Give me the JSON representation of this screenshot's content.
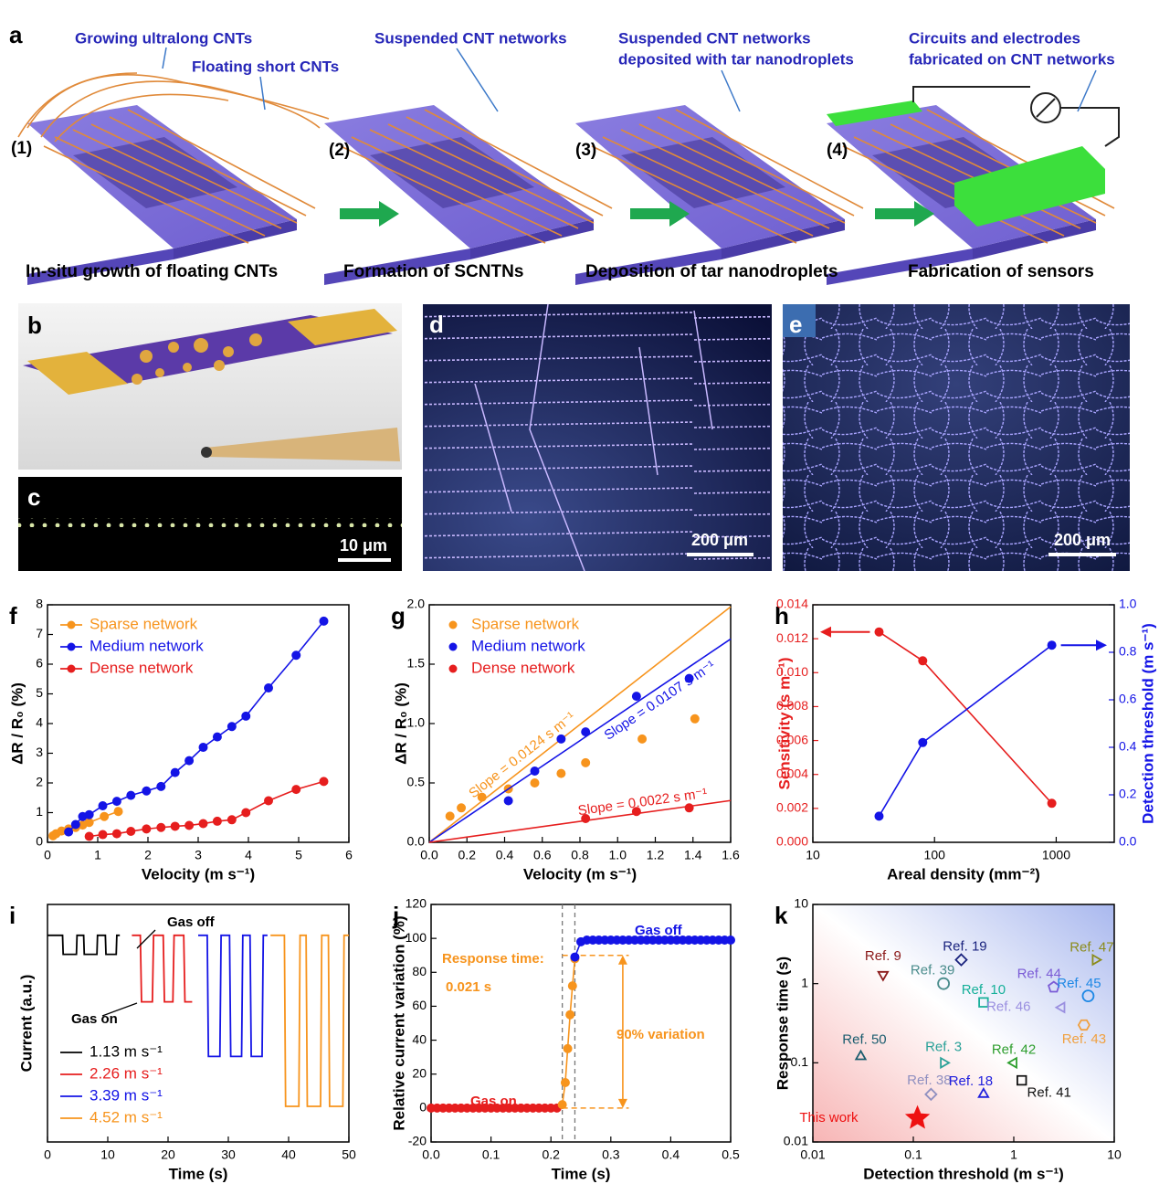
{
  "figure": {
    "a": {
      "label": "a",
      "callouts": [
        "Growing ultralong CNTs",
        "Floating short CNTs",
        "Suspended CNT networks",
        "Suspended CNT networks",
        "deposited with tar nanodroplets",
        "Circuits and electrodes",
        "fabricated on CNT networks"
      ],
      "steps": [
        "(1)",
        "(2)",
        "(3)",
        "(4)"
      ],
      "captions": [
        "In-situ growth of floating CNTs",
        "Formation of SCNTNs",
        "Deposition of tar nanodroplets",
        "Fabrication of sensors"
      ]
    },
    "b": {
      "label": "b"
    },
    "c": {
      "label": "c",
      "scale_bar": "10 μm"
    },
    "d": {
      "label": "d",
      "scale_bar": "200 μm"
    },
    "e": {
      "label": "e",
      "scale_bar": "200 μm"
    }
  },
  "chart_data": [
    {
      "type": "line",
      "panel": "f",
      "xlabel": "Velocity (m s⁻¹)",
      "ylabel": "ΔR / R₀ (%)",
      "xlim": [
        0,
        6
      ],
      "xticks": [
        0,
        1,
        2,
        3,
        4,
        5,
        6
      ],
      "ylim": [
        0,
        8
      ],
      "yticks": [
        0,
        1,
        2,
        3,
        4,
        5,
        6,
        7,
        8
      ],
      "legend": "upper left",
      "series": [
        {
          "name": "Sparse network",
          "color": "#f7941d",
          "marker": "circle",
          "x": [
            0.11,
            0.17,
            0.28,
            0.42,
            0.56,
            0.7,
            0.83,
            1.13,
            1.41
          ],
          "values": [
            0.22,
            0.29,
            0.38,
            0.45,
            0.5,
            0.58,
            0.67,
            0.87,
            1.04
          ]
        },
        {
          "name": "Medium network",
          "color": "#1414e6",
          "marker": "circle",
          "x": [
            0.42,
            0.56,
            0.7,
            0.83,
            1.1,
            1.38,
            1.66,
            1.97,
            2.26,
            2.54,
            2.82,
            3.1,
            3.38,
            3.67,
            3.95,
            4.4,
            4.95,
            5.5
          ],
          "values": [
            0.35,
            0.6,
            0.87,
            0.93,
            1.23,
            1.38,
            1.58,
            1.73,
            1.88,
            2.35,
            2.75,
            3.2,
            3.55,
            3.9,
            4.25,
            5.2,
            6.3,
            7.45
          ]
        },
        {
          "name": "Dense network",
          "color": "#e61e1e",
          "marker": "circle",
          "x": [
            0.83,
            1.1,
            1.38,
            1.66,
            1.97,
            2.26,
            2.54,
            2.82,
            3.1,
            3.38,
            3.67,
            3.95,
            4.4,
            4.95,
            5.5
          ],
          "values": [
            0.2,
            0.26,
            0.29,
            0.37,
            0.45,
            0.5,
            0.54,
            0.57,
            0.63,
            0.71,
            0.76,
            1.0,
            1.4,
            1.78,
            2.05
          ]
        }
      ]
    },
    {
      "type": "scatter",
      "panel": "g",
      "xlabel": "Velocity (m s⁻¹)",
      "ylabel": "ΔR / R₀ (%)",
      "xlim": [
        0,
        1.6
      ],
      "xticks": [
        {
          "value": 0,
          "label": "0.0"
        },
        0.2,
        0.4,
        0.6,
        0.8,
        {
          "value": 1,
          "label": "1.0"
        },
        1.2,
        1.4,
        1.6
      ],
      "ylim": [
        0,
        2
      ],
      "yticks": [
        {
          "value": 0,
          "label": "0.0"
        },
        0.5,
        {
          "value": 1,
          "label": "1.0"
        },
        1.5,
        {
          "value": 2,
          "label": "2.0"
        }
      ],
      "legend": "upper left",
      "series": [
        {
          "name": "Sparse network",
          "color": "#f7941d",
          "marker": "circle",
          "x": [
            0.11,
            0.17,
            0.28,
            0.42,
            0.56,
            0.7,
            0.83,
            1.13,
            1.41
          ],
          "values": [
            0.22,
            0.29,
            0.38,
            0.45,
            0.5,
            0.58,
            0.67,
            0.87,
            1.04
          ],
          "fit": {
            "label": "Slope = 0.0124 s m⁻¹",
            "x": [
              0,
              1.6
            ],
            "values": [
              0,
              1.984
            ]
          }
        },
        {
          "name": "Medium network",
          "color": "#1414e6",
          "marker": "circle",
          "x": [
            0.42,
            0.56,
            0.7,
            0.83,
            1.1,
            1.38
          ],
          "values": [
            0.35,
            0.6,
            0.87,
            0.93,
            1.23,
            1.38
          ],
          "fit": {
            "label": "Slope = 0.0107 s m⁻¹",
            "x": [
              0,
              1.6
            ],
            "values": [
              0,
              1.712
            ]
          }
        },
        {
          "name": "Dense network",
          "color": "#e61e1e",
          "marker": "circle",
          "x": [
            0.83,
            1.1,
            1.38
          ],
          "values": [
            0.2,
            0.26,
            0.29
          ],
          "fit": {
            "label": "Slope = 0.0022 s m⁻¹",
            "x": [
              0,
              1.6
            ],
            "values": [
              0,
              0.352
            ]
          }
        }
      ]
    },
    {
      "type": "line",
      "panel": "h",
      "xlabel": "Areal density (mm⁻²)",
      "ylabel": "Sensitivity (s m⁻¹)",
      "y2label": "Detection threshold (m s⁻¹)",
      "xscale": "log",
      "xlim": [
        10,
        3000
      ],
      "xticks": [
        10,
        100,
        1000
      ],
      "ylim": [
        0,
        0.014
      ],
      "yticks": [
        {
          "value": 0,
          "label": "0.000"
        },
        0.002,
        0.004,
        0.006,
        0.008,
        {
          "value": 0.01,
          "label": "0.010"
        },
        0.012,
        0.014
      ],
      "ycolor": "#e61e1e",
      "y2lim": [
        0,
        1
      ],
      "y2ticks": [
        {
          "value": 0,
          "label": "0.0"
        },
        0.2,
        0.4,
        0.6,
        0.8,
        {
          "value": 1,
          "label": "1.0"
        }
      ],
      "y2color": "#1414e6",
      "series": [
        {
          "color": "#e61e1e",
          "marker": "circle",
          "x": [
            35,
            80,
            920
          ],
          "values": [
            0.0124,
            0.0107,
            0.0023
          ]
        },
        {
          "color": "#1414e6",
          "marker": "circle",
          "axis": "y2",
          "x": [
            35,
            80,
            920
          ],
          "values": [
            0.11,
            0.42,
            0.83
          ]
        }
      ]
    },
    {
      "type": "line",
      "panel": "i",
      "xlabel": "Time (s)",
      "ylabel": "Current (a.u.)",
      "xlim": [
        0,
        50
      ],
      "xticks": [
        0,
        10,
        20,
        30,
        40,
        50
      ],
      "ylim": [
        0,
        1
      ],
      "legend": "lower left",
      "annotations": [
        {
          "text": "Gas off",
          "color": "#000000"
        },
        {
          "text": "Gas on",
          "color": "#000000"
        }
      ],
      "series": [
        {
          "name": "1.13 m s⁻¹",
          "color": "#000000",
          "x": [
            0,
            2.5,
            2.6,
            4.8,
            4.9,
            6,
            6.1,
            8.2,
            8.3,
            9.6,
            9.7,
            11.4,
            11.5,
            12
          ],
          "values": [
            0.87,
            0.87,
            0.79,
            0.79,
            0.87,
            0.87,
            0.79,
            0.79,
            0.87,
            0.87,
            0.79,
            0.79,
            0.87,
            0.87
          ]
        },
        {
          "name": "2.26 m s⁻¹",
          "color": "#e61e1e",
          "x": [
            14,
            15.4,
            15.6,
            17.4,
            17.6,
            19.2,
            19.4,
            20.8,
            21,
            22.6,
            22.8,
            24
          ],
          "values": [
            0.87,
            0.87,
            0.59,
            0.59,
            0.87,
            0.87,
            0.59,
            0.59,
            0.87,
            0.87,
            0.59,
            0.59
          ]
        },
        {
          "name": "3.39 m s⁻¹",
          "color": "#1414e6",
          "x": [
            25,
            26.5,
            26.7,
            28.6,
            28.8,
            30.2,
            30.4,
            32.2,
            32.4,
            33.6,
            33.8,
            35.6,
            35.8,
            36.5
          ],
          "values": [
            0.87,
            0.87,
            0.36,
            0.36,
            0.87,
            0.87,
            0.36,
            0.36,
            0.87,
            0.87,
            0.36,
            0.36,
            0.87,
            0.87
          ]
        },
        {
          "name": "4.52 m s⁻¹",
          "color": "#f7941d",
          "x": [
            37,
            39.3,
            39.5,
            41.7,
            41.9,
            42.9,
            43.1,
            45.3,
            45.5,
            46.6,
            46.8,
            49,
            49.2,
            50
          ],
          "values": [
            0.87,
            0.87,
            0.15,
            0.15,
            0.87,
            0.87,
            0.15,
            0.15,
            0.87,
            0.87,
            0.15,
            0.15,
            0.87,
            0.87
          ]
        }
      ]
    },
    {
      "type": "line",
      "panel": "j",
      "xlabel": "Time (s)",
      "ylabel": "Relative current variation (%)",
      "xlim": [
        0,
        0.5
      ],
      "xticks": [
        {
          "value": 0,
          "label": "0.0"
        },
        0.1,
        0.2,
        0.3,
        0.4,
        0.5
      ],
      "ylim": [
        -20,
        120
      ],
      "yticks": [
        -20,
        0,
        20,
        40,
        60,
        80,
        100,
        120
      ],
      "ref_lines": {
        "x": [
          0.219,
          0.24
        ],
        "y": [
          0,
          90
        ]
      },
      "annotations": [
        {
          "text": "Gas off",
          "color": "#1414e6"
        },
        {
          "text": "Gas on",
          "color": "#e61e1e"
        },
        {
          "text": "Response time:",
          "color": "#f7941d"
        },
        {
          "text": "0.021 s",
          "color": "#f7941d"
        },
        {
          "text": "90% variation",
          "color": "#f7941d"
        }
      ],
      "series": [
        {
          "color": "#e61e1e",
          "marker": "circle",
          "x": [
            0,
            0.01,
            0.02,
            0.03,
            0.04,
            0.05,
            0.06,
            0.07,
            0.08,
            0.09,
            0.1,
            0.11,
            0.12,
            0.13,
            0.14,
            0.15,
            0.16,
            0.17,
            0.18,
            0.19,
            0.2,
            0.21
          ],
          "values": [
            0,
            0,
            0,
            0,
            0,
            0,
            0,
            0,
            0,
            0,
            0,
            0,
            0,
            0,
            0,
            0,
            0,
            0,
            0,
            0,
            0,
            0
          ]
        },
        {
          "color": "#f7941d",
          "marker": "circle",
          "x": [
            0.219,
            0.224,
            0.228,
            0.232,
            0.236,
            0.24
          ],
          "values": [
            2,
            15,
            35,
            55,
            72,
            88
          ]
        },
        {
          "color": "#1414e6",
          "marker": "circle",
          "x": [
            0.24,
            0.25,
            0.26,
            0.27,
            0.28,
            0.29,
            0.3,
            0.31,
            0.32,
            0.33,
            0.34,
            0.35,
            0.36,
            0.37,
            0.38,
            0.39,
            0.4,
            0.41,
            0.42,
            0.43,
            0.44,
            0.45,
            0.46,
            0.47,
            0.48,
            0.49,
            0.5
          ],
          "values": [
            89,
            98,
            99,
            99,
            99,
            99,
            99,
            99,
            99,
            99,
            99,
            99,
            99,
            99,
            99,
            99,
            99,
            99,
            99,
            99,
            99,
            99,
            99,
            99,
            99,
            99,
            99
          ]
        }
      ]
    },
    {
      "type": "scatter",
      "panel": "k",
      "xlabel": "Detection threshold (m s⁻¹)",
      "ylabel": "Response time (s)",
      "xscale": "log",
      "yscale": "log",
      "xlim": [
        0.01,
        10
      ],
      "xticks": [
        0.01,
        0.1,
        1,
        10
      ],
      "ylim": [
        0.01,
        10
      ],
      "yticks": [
        0.01,
        0.1,
        1,
        10
      ],
      "point_labels": true,
      "series": [
        {
          "name": "Ref. 9",
          "color": "#8b1a1a",
          "marker": "triangle-down",
          "x": [
            0.05
          ],
          "values": [
            1.3
          ]
        },
        {
          "name": "Ref. 19",
          "color": "#1a237e",
          "marker": "diamond",
          "x": [
            0.3
          ],
          "values": [
            2
          ]
        },
        {
          "name": "Ref. 39",
          "color": "#4a8c8c",
          "marker": "circle",
          "x": [
            0.2
          ],
          "values": [
            1
          ]
        },
        {
          "name": "Ref. 10",
          "color": "#17b09a",
          "marker": "square",
          "x": [
            0.5
          ],
          "values": [
            0.58
          ]
        },
        {
          "name": "Ref. 47",
          "color": "#8b8b1a",
          "marker": "triangle-right",
          "x": [
            6.5
          ],
          "values": [
            2
          ]
        },
        {
          "name": "Ref. 44",
          "color": "#7b5cd6",
          "marker": "pentagon",
          "x": [
            2.5
          ],
          "values": [
            0.9
          ]
        },
        {
          "name": "Ref. 45",
          "color": "#1e88e5",
          "marker": "circle",
          "x": [
            5.5
          ],
          "values": [
            0.7
          ]
        },
        {
          "name": "Ref. 46",
          "color": "#9a8fe0",
          "marker": "triangle-left",
          "x": [
            3
          ],
          "values": [
            0.5
          ]
        },
        {
          "name": "Ref. 43",
          "color": "#f0a040",
          "marker": "hexagon",
          "x": [
            5
          ],
          "values": [
            0.3
          ]
        },
        {
          "name": "Ref. 50",
          "color": "#1a5c6e",
          "marker": "triangle-up",
          "x": [
            0.03
          ],
          "values": [
            0.12
          ]
        },
        {
          "name": "Ref. 3",
          "color": "#2aa198",
          "marker": "triangle-right",
          "x": [
            0.2
          ],
          "values": [
            0.1
          ]
        },
        {
          "name": "Ref. 42",
          "color": "#2e9e2e",
          "marker": "triangle-left",
          "x": [
            1
          ],
          "values": [
            0.1
          ]
        },
        {
          "name": "Ref. 38",
          "color": "#9090c0",
          "marker": "diamond",
          "x": [
            0.15
          ],
          "values": [
            0.04
          ]
        },
        {
          "name": "Ref. 18",
          "color": "#2020dd",
          "marker": "triangle-up",
          "x": [
            0.5
          ],
          "values": [
            0.04
          ]
        },
        {
          "name": "Ref. 41",
          "color": "#111111",
          "marker": "square",
          "x": [
            1.2
          ],
          "values": [
            0.06
          ]
        },
        {
          "name": "This work",
          "color": "#ee1111",
          "marker": "star",
          "x": [
            0.11
          ],
          "values": [
            0.02
          ]
        }
      ]
    }
  ]
}
